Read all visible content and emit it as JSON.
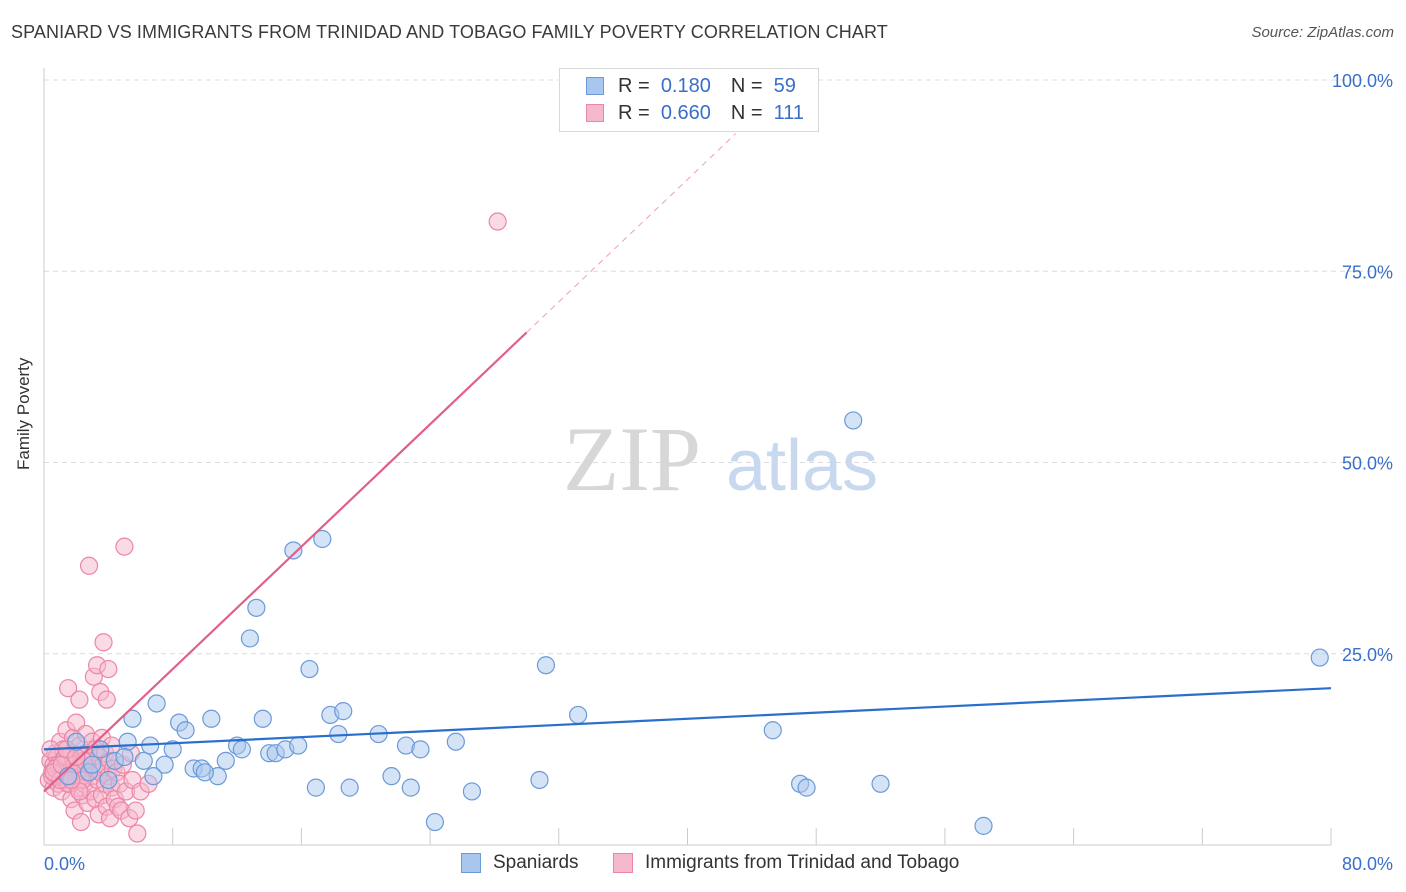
{
  "title": "SPANIARD VS IMMIGRANTS FROM TRINIDAD AND TOBAGO FAMILY POVERTY CORRELATION CHART",
  "source": "Source: ZipAtlas.com",
  "watermark": {
    "zip": "ZIP",
    "atlas": "atlas"
  },
  "legend_top": {
    "r_label": "R =",
    "n_label": "N =",
    "rows": [
      {
        "r": "0.180",
        "n": "59"
      },
      {
        "r": "0.660",
        "n": "111"
      }
    ]
  },
  "colors": {
    "blue_fill": "#a9c7ee",
    "blue_stroke": "#6b9ad8",
    "blue_line": "#2a6fcc",
    "pink_fill": "#f6b8cb",
    "pink_stroke": "#eb86a6",
    "pink_line": "#e0608a",
    "tick_label": "#3a6fc9"
  },
  "chart_data": {
    "type": "scatter",
    "title": "SPANIARD VS IMMIGRANTS FROM TRINIDAD AND TOBAGO FAMILY POVERTY CORRELATION CHART",
    "xlabel": "",
    "ylabel": "Family Poverty",
    "xlim": [
      0,
      80
    ],
    "ylim": [
      0,
      100
    ],
    "x_tick_labels": [
      "0.0%",
      "80.0%"
    ],
    "y_ticks": [
      25,
      50,
      75,
      100
    ],
    "y_tick_labels": [
      "25.0%",
      "50.0%",
      "75.0%",
      "100.0%"
    ],
    "grid": "horizontal-dashed",
    "series": [
      {
        "name": "Spaniards",
        "color": "#a9c7ee",
        "points": [
          [
            2.0,
            13.5
          ],
          [
            3.5,
            12.5
          ],
          [
            4.4,
            11.0
          ],
          [
            5.2,
            13.5
          ],
          [
            5.5,
            16.5
          ],
          [
            6.2,
            11.0
          ],
          [
            6.6,
            13.0
          ],
          [
            7.0,
            18.5
          ],
          [
            7.5,
            10.5
          ],
          [
            8.0,
            12.5
          ],
          [
            8.4,
            16.0
          ],
          [
            8.8,
            15.0
          ],
          [
            9.3,
            10.0
          ],
          [
            9.8,
            10.0
          ],
          [
            10.4,
            16.5
          ],
          [
            10.8,
            9.0
          ],
          [
            11.3,
            11.0
          ],
          [
            12.0,
            13.0
          ],
          [
            12.3,
            12.5
          ],
          [
            12.8,
            27.0
          ],
          [
            13.2,
            31.0
          ],
          [
            13.6,
            16.5
          ],
          [
            14.0,
            12.0
          ],
          [
            14.4,
            12.0
          ],
          [
            15.0,
            12.5
          ],
          [
            15.5,
            38.5
          ],
          [
            15.8,
            13.0
          ],
          [
            16.5,
            23.0
          ],
          [
            16.9,
            7.5
          ],
          [
            17.3,
            40.0
          ],
          [
            17.8,
            17.0
          ],
          [
            18.3,
            14.5
          ],
          [
            18.6,
            17.5
          ],
          [
            19.0,
            7.5
          ],
          [
            20.8,
            14.5
          ],
          [
            21.6,
            9.0
          ],
          [
            22.5,
            13.0
          ],
          [
            22.8,
            7.5
          ],
          [
            23.4,
            12.5
          ],
          [
            24.3,
            3.0
          ],
          [
            25.6,
            13.5
          ],
          [
            26.6,
            7.0
          ],
          [
            30.8,
            8.5
          ],
          [
            31.2,
            23.5
          ],
          [
            33.2,
            17.0
          ],
          [
            45.3,
            15.0
          ],
          [
            47.0,
            8.0
          ],
          [
            47.4,
            7.5
          ],
          [
            50.3,
            55.5
          ],
          [
            52.0,
            8.0
          ],
          [
            58.4,
            2.5
          ],
          [
            79.3,
            24.5
          ],
          [
            2.8,
            9.5
          ],
          [
            4.0,
            8.5
          ],
          [
            1.5,
            9.0
          ],
          [
            3.0,
            10.5
          ],
          [
            6.8,
            9.0
          ],
          [
            10.0,
            9.5
          ],
          [
            5.0,
            11.5
          ]
        ]
      },
      {
        "name": "Immigrants from Trinidad and Tobago",
        "color": "#f6b8cb",
        "points": [
          [
            0.3,
            8.5
          ],
          [
            0.4,
            11.0
          ],
          [
            0.5,
            9.5
          ],
          [
            0.6,
            10.5
          ],
          [
            0.6,
            7.5
          ],
          [
            0.7,
            12.0
          ],
          [
            0.8,
            9.0
          ],
          [
            0.8,
            11.5
          ],
          [
            0.9,
            8.0
          ],
          [
            1.0,
            10.0
          ],
          [
            1.0,
            13.5
          ],
          [
            1.1,
            9.5
          ],
          [
            1.1,
            7.0
          ],
          [
            1.2,
            12.5
          ],
          [
            1.2,
            11.0
          ],
          [
            1.3,
            8.5
          ],
          [
            1.3,
            10.5
          ],
          [
            1.4,
            9.0
          ],
          [
            1.4,
            15.0
          ],
          [
            1.5,
            20.5
          ],
          [
            1.5,
            11.5
          ],
          [
            1.6,
            8.0
          ],
          [
            1.6,
            10.0
          ],
          [
            1.7,
            6.0
          ],
          [
            1.7,
            12.0
          ],
          [
            1.8,
            9.5
          ],
          [
            1.8,
            14.0
          ],
          [
            1.9,
            4.5
          ],
          [
            1.9,
            11.0
          ],
          [
            2.0,
            8.5
          ],
          [
            2.0,
            16.0
          ],
          [
            2.1,
            10.0
          ],
          [
            2.1,
            7.5
          ],
          [
            2.2,
            13.0
          ],
          [
            2.2,
            19.0
          ],
          [
            2.3,
            9.0
          ],
          [
            2.3,
            3.0
          ],
          [
            2.4,
            11.5
          ],
          [
            2.4,
            6.5
          ],
          [
            2.5,
            10.5
          ],
          [
            2.5,
            8.0
          ],
          [
            2.6,
            14.5
          ],
          [
            2.6,
            12.0
          ],
          [
            2.7,
            9.5
          ],
          [
            2.7,
            5.5
          ],
          [
            2.8,
            36.5
          ],
          [
            2.9,
            11.0
          ],
          [
            2.9,
            7.0
          ],
          [
            3.0,
            13.5
          ],
          [
            3.0,
            9.0
          ],
          [
            3.1,
            22.0
          ],
          [
            3.1,
            10.0
          ],
          [
            3.2,
            6.0
          ],
          [
            3.2,
            12.5
          ],
          [
            3.3,
            23.5
          ],
          [
            3.3,
            8.5
          ],
          [
            3.4,
            11.5
          ],
          [
            3.4,
            4.0
          ],
          [
            3.5,
            20.0
          ],
          [
            3.5,
            9.5
          ],
          [
            3.6,
            14.0
          ],
          [
            3.6,
            6.5
          ],
          [
            3.7,
            10.5
          ],
          [
            3.7,
            26.5
          ],
          [
            3.8,
            8.0
          ],
          [
            3.8,
            12.0
          ],
          [
            3.9,
            19.0
          ],
          [
            3.9,
            5.0
          ],
          [
            4.0,
            9.0
          ],
          [
            4.0,
            23.0
          ],
          [
            4.1,
            11.0
          ],
          [
            4.1,
            3.5
          ],
          [
            4.2,
            7.5
          ],
          [
            4.2,
            13.0
          ],
          [
            4.3,
            10.0
          ],
          [
            4.4,
            6.0
          ],
          [
            4.5,
            9.5
          ],
          [
            4.6,
            5.0
          ],
          [
            4.7,
            8.0
          ],
          [
            4.8,
            4.5
          ],
          [
            4.9,
            10.5
          ],
          [
            5.0,
            39.0
          ],
          [
            5.1,
            7.0
          ],
          [
            5.3,
            3.5
          ],
          [
            5.4,
            12.0
          ],
          [
            5.5,
            8.5
          ],
          [
            5.7,
            4.5
          ],
          [
            5.8,
            1.5
          ],
          [
            6.0,
            7.0
          ],
          [
            6.5,
            8.0
          ],
          [
            28.2,
            81.5
          ],
          [
            0.5,
            9.0
          ],
          [
            0.9,
            10.5
          ],
          [
            1.2,
            9.5
          ],
          [
            1.5,
            8.0
          ],
          [
            1.8,
            11.0
          ],
          [
            2.1,
            9.5
          ],
          [
            2.4,
            8.5
          ],
          [
            0.7,
            10.0
          ],
          [
            1.0,
            8.5
          ],
          [
            1.3,
            11.5
          ],
          [
            1.6,
            9.0
          ],
          [
            1.9,
            10.5
          ],
          [
            2.2,
            7.0
          ],
          [
            2.5,
            11.0
          ],
          [
            0.4,
            12.5
          ],
          [
            0.6,
            9.5
          ],
          [
            1.1,
            10.5
          ],
          [
            1.4,
            12.5
          ],
          [
            1.7,
            8.5
          ],
          [
            2.0,
            11.5
          ]
        ]
      }
    ],
    "trend_lines": [
      {
        "series": "Spaniards",
        "x": [
          0,
          80
        ],
        "y": [
          12.5,
          20.5
        ],
        "style": "solid"
      },
      {
        "series": "Immigrants from Trinidad and Tobago",
        "x": [
          0,
          30
        ],
        "y": [
          7.0,
          67.0
        ],
        "style": "solid"
      },
      {
        "series": "Immigrants from Trinidad and Tobago",
        "x": [
          30,
          43
        ],
        "y": [
          67.0,
          93.0
        ],
        "style": "dashed"
      }
    ]
  },
  "legend_bottom": [
    "Spaniards",
    "Immigrants from Trinidad and Tobago"
  ]
}
